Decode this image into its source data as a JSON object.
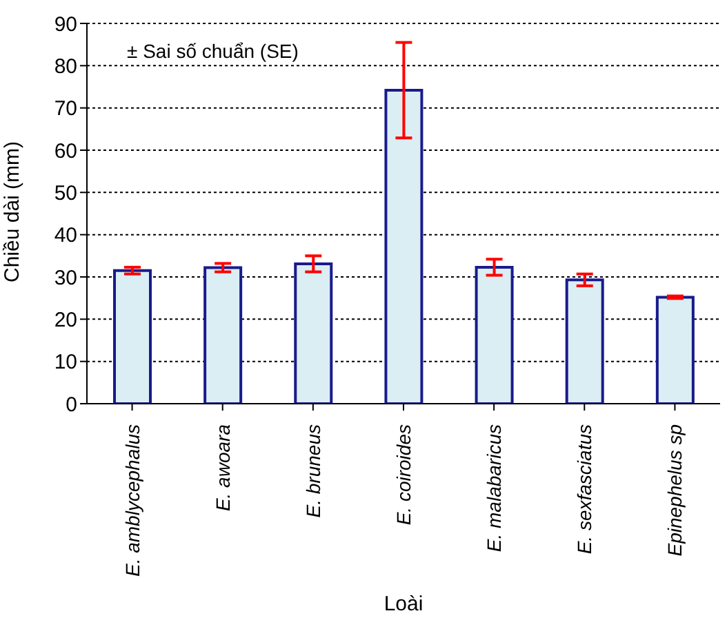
{
  "chart_data": {
    "type": "bar",
    "xlabel": "Loài",
    "ylabel": "Chiều dài (mm)",
    "categories": [
      "E. amblycephalus",
      "E. awoara",
      "E. bruneus",
      "E. coiroides",
      "E. malabaricus",
      "E. sexfasciatus",
      "Epinephelus sp"
    ],
    "values": [
      31.5,
      32.2,
      33.1,
      74.2,
      32.3,
      29.3,
      25.2
    ],
    "errors": [
      0.8,
      1.0,
      1.9,
      11.3,
      1.9,
      1.4,
      0.3
    ],
    "color": "#daeef3",
    "ylim": [
      0,
      90
    ],
    "yticks": [
      0,
      10,
      20,
      30,
      40,
      50,
      60,
      70,
      80,
      90
    ],
    "grid": "y",
    "annotations": [
      "± Sai số chuẩn (SE)"
    ]
  }
}
